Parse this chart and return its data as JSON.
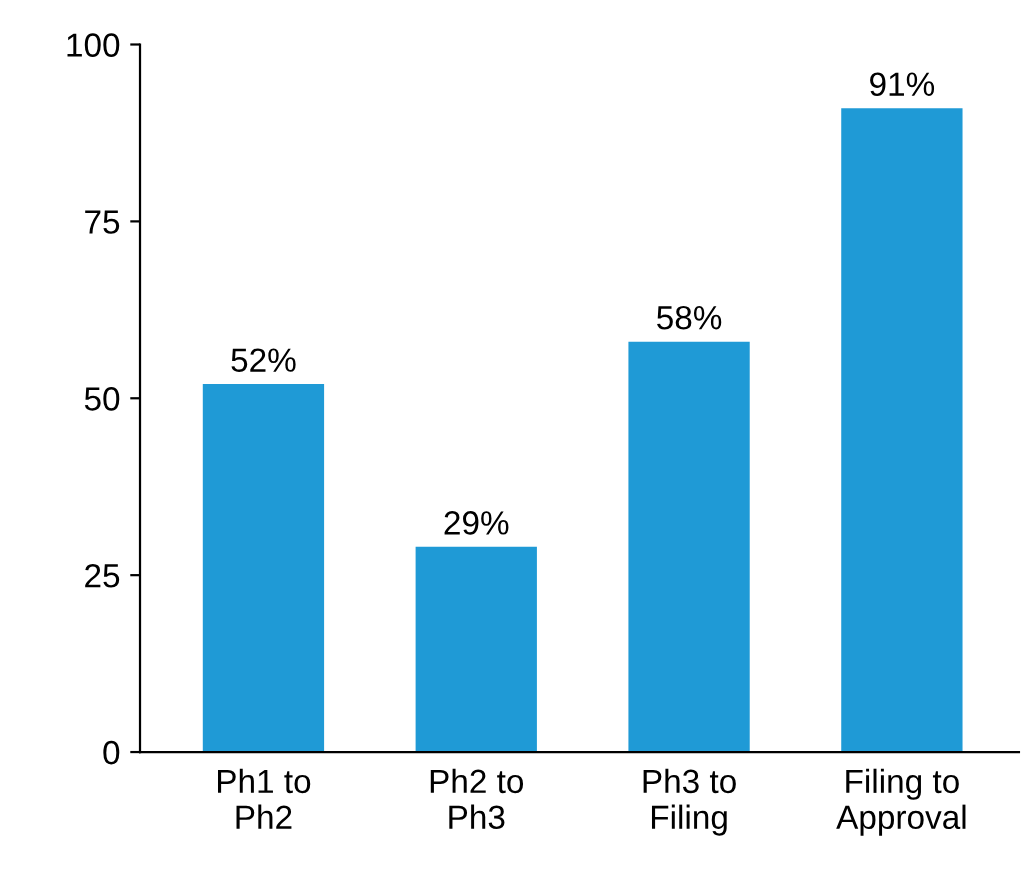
{
  "chart_data": {
    "type": "bar",
    "categories": [
      "Ph1 to\nPh2",
      "Ph2 to\nPh3",
      "Ph3 to\nFiling",
      "Filing to\nApproval"
    ],
    "values": [
      52,
      29,
      58,
      91
    ],
    "value_labels": [
      "52%",
      "29%",
      "58%",
      "91%"
    ],
    "color": "#1f9ad6",
    "ylim": [
      0,
      100
    ],
    "yticks": [
      0,
      25,
      50,
      75,
      100
    ],
    "grid": false
  }
}
